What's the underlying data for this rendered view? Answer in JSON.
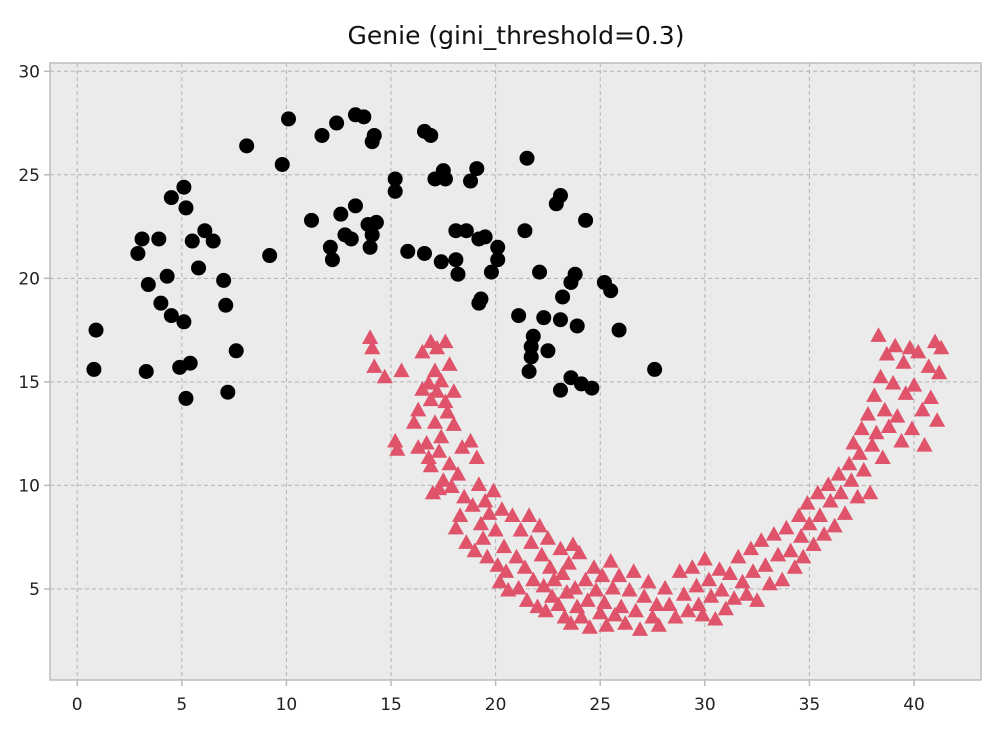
{
  "chart_data": {
    "type": "scatter",
    "title": "Genie (gini_threshold=0.3)",
    "xlabel": "",
    "ylabel": "",
    "xlim": [
      -1.3,
      43.2
    ],
    "ylim": [
      0.6,
      30.4
    ],
    "xticks": [
      0,
      5,
      10,
      15,
      20,
      25,
      30,
      35,
      40
    ],
    "yticks": [
      5,
      10,
      15,
      20,
      25,
      30
    ],
    "grid": true,
    "colors": {
      "background": "#ebebeb",
      "grid": "#b3b3b3",
      "axis": "#bcbcbc"
    },
    "series": [
      {
        "marker": "circle",
        "color": "#000000",
        "points": [
          [
            0.8,
            15.6
          ],
          [
            0.9,
            17.5
          ],
          [
            2.9,
            21.2
          ],
          [
            3.1,
            21.9
          ],
          [
            3.3,
            15.5
          ],
          [
            3.4,
            19.7
          ],
          [
            3.9,
            21.9
          ],
          [
            4.0,
            18.8
          ],
          [
            4.3,
            20.1
          ],
          [
            4.5,
            18.2
          ],
          [
            4.5,
            23.9
          ],
          [
            4.9,
            15.7
          ],
          [
            5.1,
            24.4
          ],
          [
            5.1,
            17.9
          ],
          [
            5.2,
            23.4
          ],
          [
            5.2,
            14.2
          ],
          [
            5.4,
            15.9
          ],
          [
            5.5,
            21.8
          ],
          [
            5.8,
            20.5
          ],
          [
            6.1,
            22.3
          ],
          [
            6.5,
            21.8
          ],
          [
            7.0,
            19.9
          ],
          [
            7.1,
            18.7
          ],
          [
            7.2,
            14.5
          ],
          [
            7.6,
            16.5
          ],
          [
            8.1,
            26.4
          ],
          [
            9.2,
            21.1
          ],
          [
            9.8,
            25.5
          ],
          [
            10.1,
            27.7
          ],
          [
            11.2,
            22.8
          ],
          [
            11.7,
            26.9
          ],
          [
            12.1,
            21.5
          ],
          [
            12.2,
            20.9
          ],
          [
            12.4,
            27.5
          ],
          [
            12.6,
            23.1
          ],
          [
            12.8,
            22.1
          ],
          [
            13.1,
            21.9
          ],
          [
            13.3,
            23.5
          ],
          [
            13.3,
            27.9
          ],
          [
            13.7,
            27.8
          ],
          [
            13.9,
            22.6
          ],
          [
            14.0,
            21.5
          ],
          [
            14.1,
            26.6
          ],
          [
            14.1,
            22.1
          ],
          [
            14.2,
            26.9
          ],
          [
            14.3,
            22.7
          ],
          [
            15.2,
            24.2
          ],
          [
            15.2,
            24.8
          ],
          [
            15.8,
            21.3
          ],
          [
            16.6,
            27.1
          ],
          [
            16.6,
            21.2
          ],
          [
            16.9,
            26.9
          ],
          [
            17.1,
            24.8
          ],
          [
            17.4,
            20.8
          ],
          [
            17.5,
            25.2
          ],
          [
            17.6,
            24.8
          ],
          [
            18.1,
            22.3
          ],
          [
            18.1,
            20.9
          ],
          [
            18.2,
            20.2
          ],
          [
            18.6,
            22.3
          ],
          [
            18.8,
            24.7
          ],
          [
            19.1,
            25.3
          ],
          [
            19.2,
            21.9
          ],
          [
            19.2,
            18.8
          ],
          [
            19.3,
            19.0
          ],
          [
            19.5,
            22.0
          ],
          [
            19.8,
            20.3
          ],
          [
            20.1,
            20.9
          ],
          [
            20.1,
            21.5
          ],
          [
            21.1,
            18.2
          ],
          [
            21.5,
            25.8
          ],
          [
            21.4,
            22.3
          ],
          [
            21.6,
            15.5
          ],
          [
            21.7,
            16.2
          ],
          [
            21.7,
            16.7
          ],
          [
            21.8,
            17.2
          ],
          [
            22.1,
            20.3
          ],
          [
            22.3,
            18.1
          ],
          [
            22.5,
            16.5
          ],
          [
            22.9,
            23.6
          ],
          [
            23.1,
            24.0
          ],
          [
            23.1,
            18.0
          ],
          [
            23.1,
            14.6
          ],
          [
            23.2,
            19.1
          ],
          [
            23.6,
            15.2
          ],
          [
            23.6,
            19.8
          ],
          [
            23.8,
            20.2
          ],
          [
            23.9,
            17.7
          ],
          [
            24.1,
            14.9
          ],
          [
            24.3,
            22.8
          ],
          [
            24.6,
            14.7
          ],
          [
            25.2,
            19.8
          ],
          [
            25.5,
            19.4
          ],
          [
            25.9,
            17.5
          ],
          [
            27.6,
            15.6
          ]
        ]
      },
      {
        "marker": "triangle",
        "color": "#df536b",
        "points": [
          [
            14.0,
            17.1
          ],
          [
            14.1,
            16.6
          ],
          [
            14.2,
            15.7
          ],
          [
            14.7,
            15.2
          ],
          [
            15.2,
            12.1
          ],
          [
            15.3,
            11.7
          ],
          [
            15.5,
            15.5
          ],
          [
            16.1,
            13.0
          ],
          [
            16.3,
            13.6
          ],
          [
            16.3,
            11.8
          ],
          [
            16.5,
            16.4
          ],
          [
            16.5,
            14.6
          ],
          [
            16.7,
            12.0
          ],
          [
            16.8,
            14.9
          ],
          [
            16.8,
            11.3
          ],
          [
            16.9,
            16.9
          ],
          [
            16.9,
            14.1
          ],
          [
            16.9,
            10.9
          ],
          [
            17.0,
            9.6
          ],
          [
            17.1,
            15.5
          ],
          [
            17.1,
            13.0
          ],
          [
            17.2,
            16.6
          ],
          [
            17.2,
            14.5
          ],
          [
            17.3,
            11.6
          ],
          [
            17.3,
            9.8
          ],
          [
            17.4,
            15.0
          ],
          [
            17.4,
            12.3
          ],
          [
            17.5,
            10.2
          ],
          [
            17.6,
            16.9
          ],
          [
            17.6,
            14.0
          ],
          [
            17.7,
            13.5
          ],
          [
            17.8,
            15.8
          ],
          [
            17.8,
            11.0
          ],
          [
            17.9,
            9.9
          ],
          [
            18.0,
            14.5
          ],
          [
            18.0,
            12.9
          ],
          [
            18.1,
            7.9
          ],
          [
            18.2,
            10.5
          ],
          [
            18.3,
            8.5
          ],
          [
            18.4,
            11.8
          ],
          [
            18.5,
            9.4
          ],
          [
            18.6,
            7.2
          ],
          [
            18.8,
            12.1
          ],
          [
            18.9,
            9.0
          ],
          [
            19.0,
            6.8
          ],
          [
            19.1,
            11.3
          ],
          [
            19.2,
            10.0
          ],
          [
            19.3,
            8.1
          ],
          [
            19.4,
            7.4
          ],
          [
            19.5,
            9.2
          ],
          [
            19.6,
            6.5
          ],
          [
            19.7,
            8.6
          ],
          [
            19.9,
            9.7
          ],
          [
            20.0,
            7.8
          ],
          [
            20.1,
            6.1
          ],
          [
            20.2,
            5.3
          ],
          [
            20.3,
            8.8
          ],
          [
            20.4,
            7.0
          ],
          [
            20.5,
            5.8
          ],
          [
            20.6,
            4.9
          ],
          [
            20.8,
            8.5
          ],
          [
            21.0,
            6.5
          ],
          [
            21.1,
            5.0
          ],
          [
            21.2,
            7.8
          ],
          [
            21.4,
            6.0
          ],
          [
            21.5,
            4.4
          ],
          [
            21.6,
            8.5
          ],
          [
            21.7,
            7.2
          ],
          [
            21.8,
            5.4
          ],
          [
            22.0,
            4.1
          ],
          [
            22.1,
            8.0
          ],
          [
            22.2,
            6.6
          ],
          [
            22.3,
            5.1
          ],
          [
            22.4,
            3.9
          ],
          [
            22.5,
            7.4
          ],
          [
            22.6,
            6.0
          ],
          [
            22.7,
            4.6
          ],
          [
            22.8,
            5.4
          ],
          [
            23.0,
            4.2
          ],
          [
            23.1,
            6.9
          ],
          [
            23.2,
            5.7
          ],
          [
            23.3,
            3.6
          ],
          [
            23.4,
            4.8
          ],
          [
            23.5,
            6.2
          ],
          [
            23.6,
            3.3
          ],
          [
            23.7,
            7.1
          ],
          [
            23.8,
            5.0
          ],
          [
            23.9,
            4.1
          ],
          [
            24.0,
            6.7
          ],
          [
            24.1,
            3.6
          ],
          [
            24.3,
            5.4
          ],
          [
            24.4,
            4.4
          ],
          [
            24.5,
            3.1
          ],
          [
            24.7,
            6.0
          ],
          [
            24.8,
            4.9
          ],
          [
            25.0,
            3.8
          ],
          [
            25.1,
            5.6
          ],
          [
            25.2,
            4.3
          ],
          [
            25.3,
            3.2
          ],
          [
            25.5,
            6.3
          ],
          [
            25.6,
            5.0
          ],
          [
            25.7,
            3.7
          ],
          [
            25.9,
            5.6
          ],
          [
            26.0,
            4.1
          ],
          [
            26.2,
            3.3
          ],
          [
            26.4,
            4.9
          ],
          [
            26.6,
            5.8
          ],
          [
            26.7,
            3.9
          ],
          [
            26.9,
            3.0
          ],
          [
            27.1,
            4.6
          ],
          [
            27.3,
            5.3
          ],
          [
            27.5,
            3.6
          ],
          [
            27.7,
            4.2
          ],
          [
            27.8,
            3.2
          ],
          [
            28.1,
            5.0
          ],
          [
            28.3,
            4.2
          ],
          [
            28.6,
            3.6
          ],
          [
            28.8,
            5.8
          ],
          [
            29.0,
            4.7
          ],
          [
            29.2,
            3.9
          ],
          [
            29.4,
            6.0
          ],
          [
            29.6,
            5.1
          ],
          [
            29.7,
            4.2
          ],
          [
            29.9,
            3.7
          ],
          [
            30.0,
            6.4
          ],
          [
            30.2,
            5.4
          ],
          [
            30.3,
            4.6
          ],
          [
            30.5,
            3.5
          ],
          [
            30.7,
            5.9
          ],
          [
            30.8,
            4.9
          ],
          [
            31.0,
            4.0
          ],
          [
            31.2,
            5.7
          ],
          [
            31.4,
            4.5
          ],
          [
            31.6,
            6.5
          ],
          [
            31.8,
            5.3
          ],
          [
            32.0,
            4.7
          ],
          [
            32.2,
            6.9
          ],
          [
            32.3,
            5.8
          ],
          [
            32.5,
            4.4
          ],
          [
            32.7,
            7.3
          ],
          [
            32.9,
            6.1
          ],
          [
            33.1,
            5.2
          ],
          [
            33.3,
            7.6
          ],
          [
            33.5,
            6.6
          ],
          [
            33.7,
            5.4
          ],
          [
            33.9,
            7.9
          ],
          [
            34.1,
            6.8
          ],
          [
            34.3,
            6.0
          ],
          [
            34.5,
            8.5
          ],
          [
            34.6,
            7.5
          ],
          [
            34.7,
            6.5
          ],
          [
            34.9,
            9.1
          ],
          [
            35.0,
            8.1
          ],
          [
            35.2,
            7.1
          ],
          [
            35.4,
            9.6
          ],
          [
            35.5,
            8.5
          ],
          [
            35.7,
            7.6
          ],
          [
            35.9,
            10.0
          ],
          [
            36.0,
            9.2
          ],
          [
            36.2,
            8.0
          ],
          [
            36.4,
            10.5
          ],
          [
            36.5,
            9.6
          ],
          [
            36.7,
            8.6
          ],
          [
            36.9,
            11.0
          ],
          [
            37.0,
            10.2
          ],
          [
            37.1,
            12.0
          ],
          [
            37.3,
            9.4
          ],
          [
            37.4,
            11.5
          ],
          [
            37.5,
            12.7
          ],
          [
            37.6,
            10.7
          ],
          [
            37.8,
            13.4
          ],
          [
            37.9,
            9.6
          ],
          [
            38.0,
            11.9
          ],
          [
            38.1,
            14.3
          ],
          [
            38.2,
            12.5
          ],
          [
            38.3,
            17.2
          ],
          [
            38.4,
            15.2
          ],
          [
            38.5,
            11.3
          ],
          [
            38.6,
            13.6
          ],
          [
            38.7,
            16.3
          ],
          [
            38.8,
            12.8
          ],
          [
            39.0,
            14.9
          ],
          [
            39.1,
            16.7
          ],
          [
            39.2,
            13.3
          ],
          [
            39.4,
            12.1
          ],
          [
            39.5,
            15.9
          ],
          [
            39.6,
            14.4
          ],
          [
            39.8,
            16.6
          ],
          [
            39.9,
            12.7
          ],
          [
            40.0,
            14.8
          ],
          [
            40.2,
            16.4
          ],
          [
            40.4,
            13.6
          ],
          [
            40.5,
            11.9
          ],
          [
            40.7,
            15.7
          ],
          [
            40.8,
            14.2
          ],
          [
            41.0,
            16.9
          ],
          [
            41.1,
            13.1
          ],
          [
            41.2,
            15.4
          ],
          [
            41.3,
            16.6
          ]
        ]
      }
    ]
  }
}
